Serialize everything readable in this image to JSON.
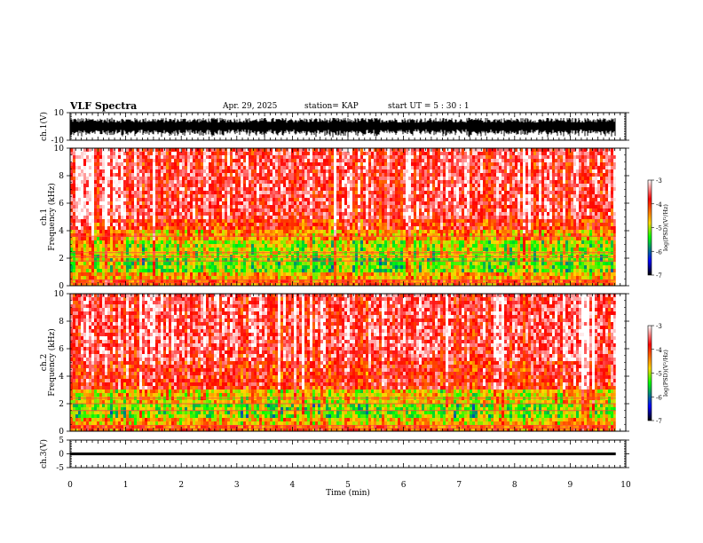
{
  "header": {
    "title": "VLF Spectra",
    "date": "Apr. 29, 2025",
    "station": "station= KAP",
    "start": "start  UT  =   5  : 30 : 1"
  },
  "chart_data": [
    {
      "type": "line",
      "name": "ch1-waveform",
      "ylabel": "ch.1(V)",
      "xlim": [
        0,
        10
      ],
      "ylim": [
        -10,
        10
      ],
      "yticks": [
        "10",
        "-10"
      ],
      "x_end": 9.82,
      "amplitude_typical": 5,
      "grid": false
    },
    {
      "type": "heatmap",
      "name": "ch1-spectrogram",
      "ylabel": "ch.1",
      "ylabel2": "Frequency  (kHz)",
      "xlim": [
        0,
        10
      ],
      "ylim": [
        0,
        10
      ],
      "yticks": [
        "0",
        "2",
        "4",
        "6",
        "8",
        "10"
      ],
      "x_end": 9.82,
      "bands": [
        {
          "f": [
            0,
            0.5
          ],
          "level": -4.3
        },
        {
          "f": [
            0.5,
            1.0
          ],
          "level": -4.6
        },
        {
          "f": [
            1.0,
            2.0
          ],
          "level": -5.3
        },
        {
          "f": [
            2.0,
            3.2
          ],
          "level": -5.1
        },
        {
          "f": [
            3.2,
            4.0
          ],
          "level": -4.6
        },
        {
          "f": [
            4.0,
            4.8
          ],
          "level": -4.1
        },
        {
          "f": [
            4.8,
            10.0
          ],
          "level": -3.7
        }
      ],
      "lines_khz": [
        0.2,
        0.4,
        1.8,
        2.1,
        2.4,
        3.6
      ]
    },
    {
      "type": "heatmap",
      "name": "ch2-spectrogram",
      "ylabel": "ch.2",
      "ylabel2": "Frequency  (kHz)",
      "xlim": [
        0,
        10
      ],
      "ylim": [
        0,
        10
      ],
      "yticks": [
        "0",
        "2",
        "4",
        "6",
        "8",
        "10"
      ],
      "x_end": 9.82,
      "bands": [
        {
          "f": [
            0,
            0.5
          ],
          "level": -4.3
        },
        {
          "f": [
            0.5,
            1.0
          ],
          "level": -4.7
        },
        {
          "f": [
            1.0,
            2.0
          ],
          "level": -5.3
        },
        {
          "f": [
            2.0,
            3.0
          ],
          "level": -4.9
        },
        {
          "f": [
            3.0,
            5.0
          ],
          "level": -4.0
        },
        {
          "f": [
            5.0,
            10.0
          ],
          "level": -3.7
        }
      ],
      "lines_khz": [
        0.2,
        0.4,
        1.5,
        2.0,
        2.4
      ]
    },
    {
      "type": "line",
      "name": "ch3-waveform",
      "ylabel": "ch.3(V)",
      "xlim": [
        0,
        10
      ],
      "ylim": [
        -5,
        5
      ],
      "yticks": [
        "5",
        "0",
        "-5"
      ],
      "xticks": [
        "0",
        "1",
        "2",
        "3",
        "4",
        "5",
        "6",
        "7",
        "8",
        "9",
        "10"
      ],
      "xlabel": "Time  (min)",
      "x_end": 9.82,
      "baseline": 0,
      "amplitude_typical": 0.5
    }
  ],
  "colorbar": {
    "ticks": [
      "-3",
      "-4",
      "-5",
      "-6",
      "-7"
    ],
    "vmin": -7,
    "vmax": -3,
    "label": "log(PSD)(V²/Hz)",
    "colors": [
      "#ffffff",
      "#ff0000",
      "#ffd700",
      "#00ff00",
      "#0000ff",
      "#000000"
    ]
  }
}
